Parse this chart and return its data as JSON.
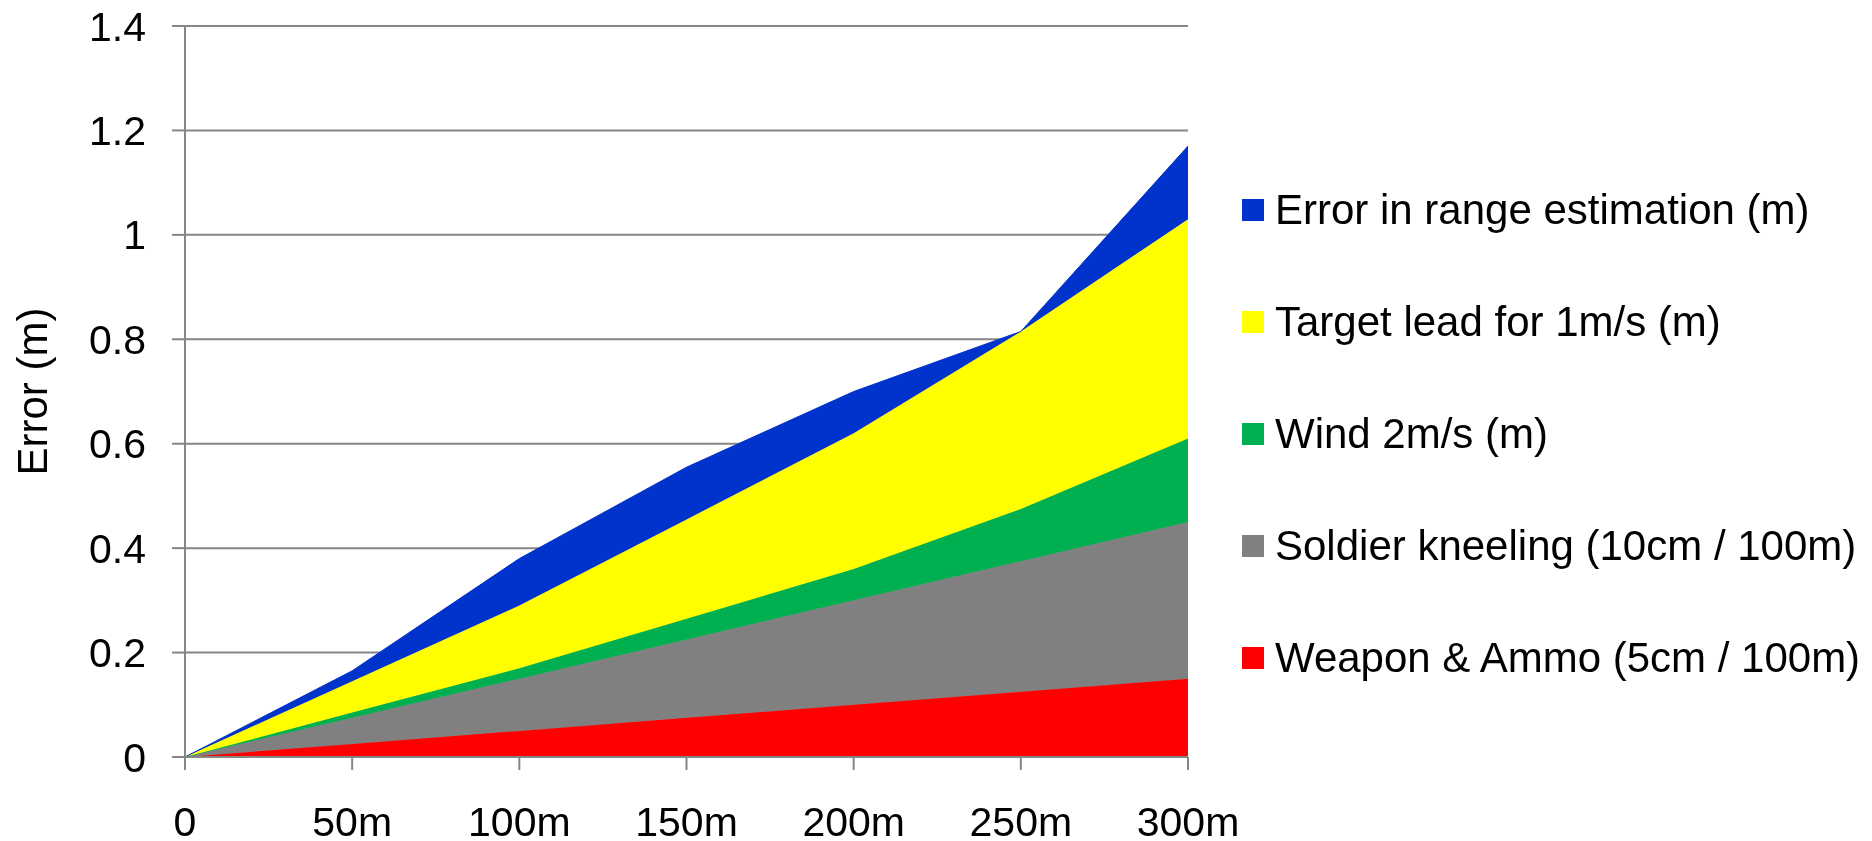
{
  "chart_data": {
    "type": "area",
    "stacked": true,
    "categories": [
      "0",
      "50m",
      "100m",
      "150m",
      "200m",
      "250m",
      "300m"
    ],
    "ylabel": "Error (m)",
    "ylim": [
      0,
      1.4
    ],
    "yticks": [
      0,
      0.2,
      0.4,
      0.6,
      0.8,
      1,
      1.2,
      1.4
    ],
    "grid": "y",
    "legend": "right",
    "series": [
      {
        "name": "Weapon & Ammo (5cm / 100m)",
        "color": "#ff0000",
        "values": [
          0,
          0.025,
          0.05,
          0.075,
          0.1,
          0.125,
          0.15
        ]
      },
      {
        "name": "Soldier kneeling (10cm / 100m)",
        "color": "#808080",
        "values": [
          0,
          0.05,
          0.1,
          0.15,
          0.2,
          0.25,
          0.3
        ]
      },
      {
        "name": "Wind 2m/s (m)",
        "color": "#00b050",
        "values": [
          0,
          0.01,
          0.02,
          0.04,
          0.06,
          0.1,
          0.16
        ]
      },
      {
        "name": "Target lead for 1m/s (m)",
        "color": "#ffff00",
        "values": [
          0,
          0.06,
          0.12,
          0.19,
          0.26,
          0.34,
          0.42
        ]
      },
      {
        "name": "Error in range estimation (m)",
        "color": "#0033cc",
        "values": [
          0,
          0.02,
          0.09,
          0.1,
          0.08,
          0,
          0.14
        ]
      }
    ]
  }
}
